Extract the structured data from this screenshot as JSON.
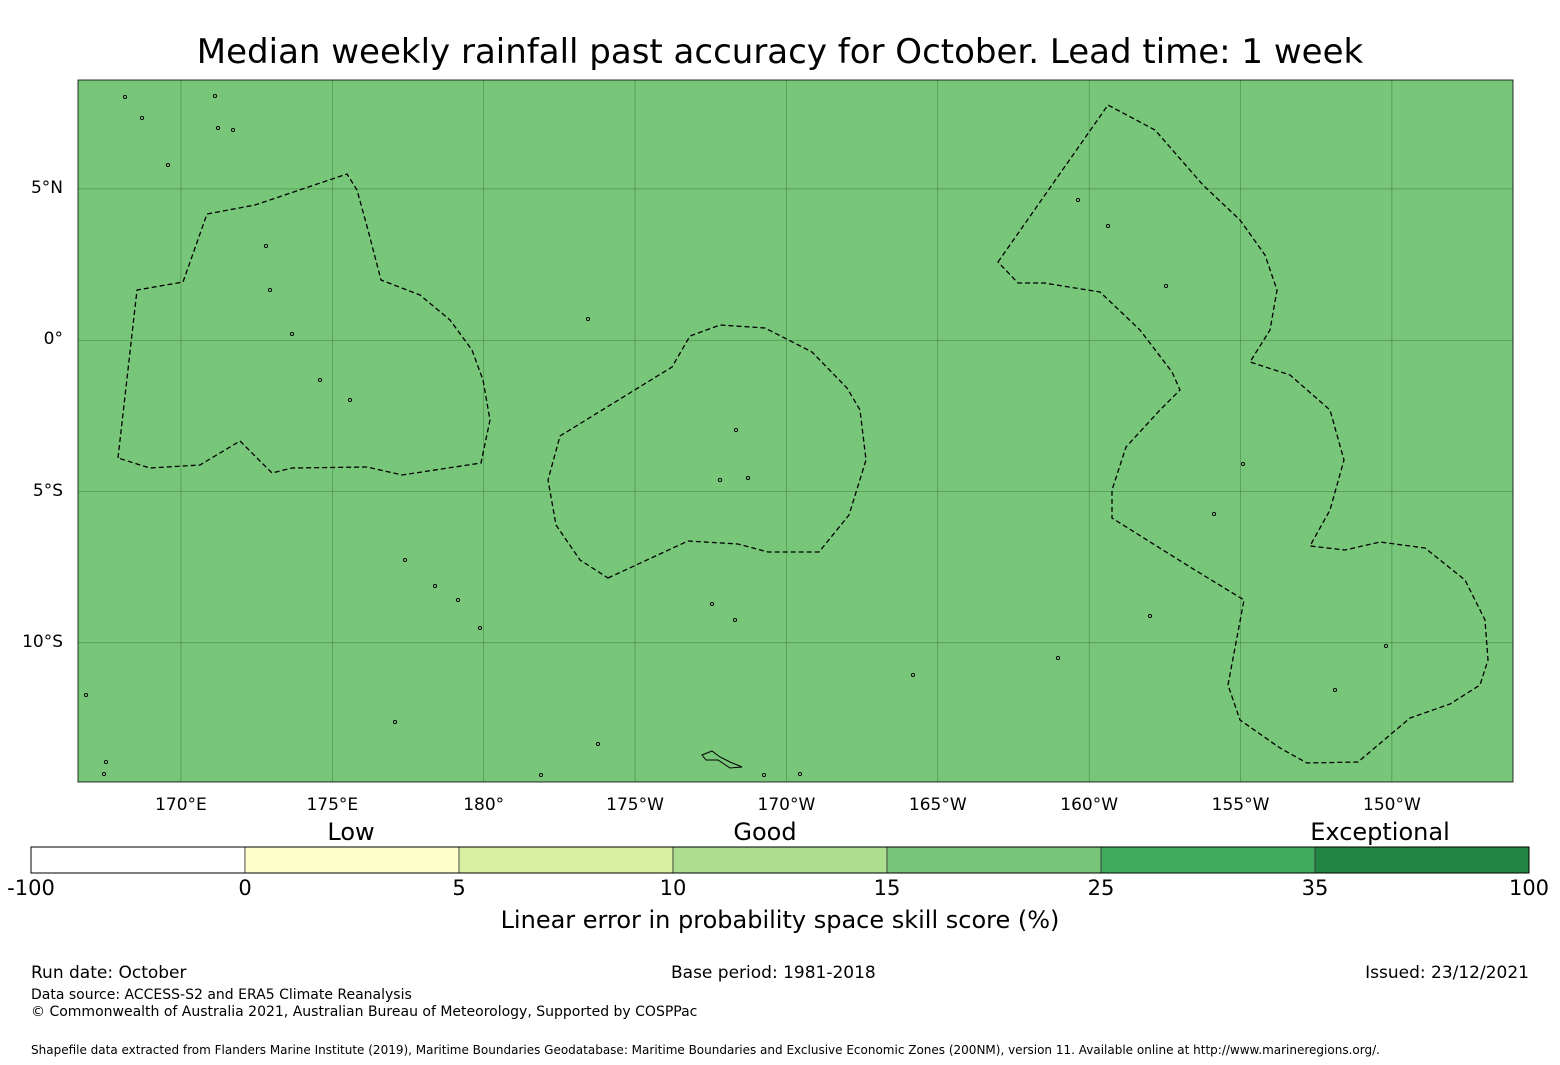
{
  "title": "Median weekly rainfall past accuracy for October. Lead time: 1 week",
  "map": {
    "lon_labels": [
      "170°E",
      "175°E",
      "180°",
      "175°W",
      "170°W",
      "165°W",
      "160°W",
      "155°W",
      "150°W"
    ],
    "lon_values": [
      170,
      175,
      180,
      185,
      190,
      195,
      200,
      205,
      210
    ],
    "lat_labels": [
      "5°N",
      "0°",
      "5°S",
      "10°S"
    ],
    "lat_values": [
      5,
      0,
      -5,
      -10
    ],
    "lon_range": [
      166.6,
      214.0
    ],
    "lat_range": [
      -14.6,
      8.6
    ],
    "legend_colors": [
      "#ffffff",
      "#ffffcc",
      "#d9f0a3",
      "#addd8e",
      "#78c679",
      "#41ab5d",
      "#238443"
    ],
    "grid_color": "#1a4d1a",
    "eez_color": "#000000"
  },
  "colorbar": {
    "category_labels": [
      "Low",
      "Good",
      "Exceptional"
    ],
    "category_positions": [
      351,
      765,
      1380
    ],
    "boundaries": [
      "-100",
      "0",
      "5",
      "10",
      "15",
      "25",
      "35",
      "100"
    ],
    "title": "Linear error in probability space skill score (%)"
  },
  "footer": {
    "run_date": "Run date: October",
    "base_period": "Base period: 1981-2018",
    "issued": "Issued: 23/12/2021",
    "data_source": "Data source: ACCESS-S2 and ERA5 Climate Reanalysis",
    "copyright": "© Commonwealth of Australia 2021, Australian Bureau of Meteorology, Supported by COSPPac",
    "shapefile": "Shapefile data extracted from Flanders Marine Institute (2019), Maritime Boundaries Geodatabase: Maritime Boundaries and Exclusive Economic Zones (200NM), version 11. Available online at http://www.marineregions.org/."
  }
}
